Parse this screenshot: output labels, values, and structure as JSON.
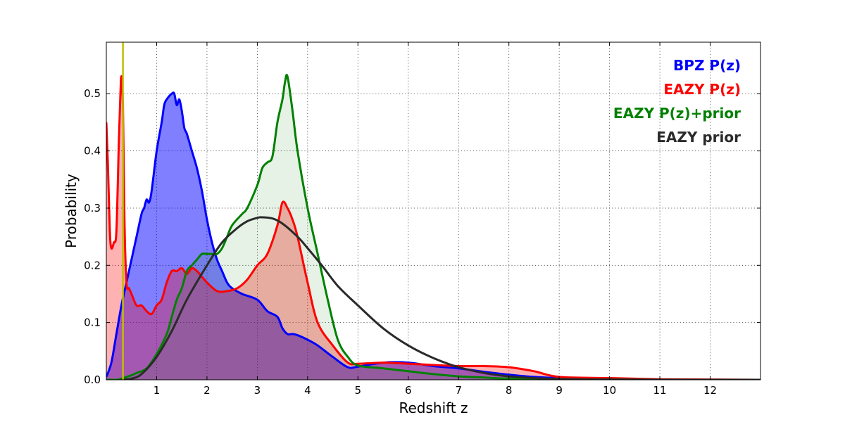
{
  "chart_data": {
    "type": "area",
    "title": "",
    "xlabel": "Redshift z",
    "ylabel": "Probability",
    "xlim": [
      0,
      13
    ],
    "ylim": [
      0,
      0.59
    ],
    "x_ticks": [
      1,
      2,
      3,
      4,
      5,
      6,
      7,
      8,
      9,
      10,
      11,
      12
    ],
    "y_ticks": [
      0.0,
      0.1,
      0.2,
      0.3,
      0.4,
      0.5
    ],
    "x_tick_labels": [
      "1",
      "2",
      "3",
      "4",
      "5",
      "6",
      "7",
      "8",
      "9",
      "10",
      "11",
      "12"
    ],
    "y_tick_labels": [
      "0.0",
      "0.1",
      "0.2",
      "0.3",
      "0.4",
      "0.5"
    ],
    "grid": true,
    "legend_position": "top-right",
    "vertical_line": {
      "x": 0.33,
      "color": "#bfbf00"
    },
    "series": [
      {
        "name": "BPZ P(z)",
        "color": "#0000ff",
        "fill": "#0000ff",
        "fill_opacity": 0.5,
        "x": [
          0,
          0.1,
          0.2,
          0.3,
          0.4,
          0.5,
          0.6,
          0.7,
          0.75,
          0.8,
          0.85,
          0.9,
          1.0,
          1.1,
          1.15,
          1.2,
          1.3,
          1.35,
          1.4,
          1.45,
          1.5,
          1.55,
          1.6,
          1.7,
          1.8,
          1.9,
          2.0,
          2.1,
          2.2,
          2.3,
          2.4,
          2.5,
          2.7,
          3.0,
          3.2,
          3.4,
          3.5,
          3.6,
          3.7,
          3.8,
          4.0,
          4.2,
          4.5,
          4.8,
          5.0,
          5.5,
          6.0,
          6.5,
          7.0,
          7.5,
          8.0,
          8.5,
          9.0,
          10.0,
          11.0,
          12.0,
          13.0
        ],
        "values": [
          0.005,
          0.03,
          0.08,
          0.13,
          0.17,
          0.21,
          0.25,
          0.29,
          0.3,
          0.315,
          0.31,
          0.33,
          0.4,
          0.45,
          0.48,
          0.49,
          0.5,
          0.5,
          0.48,
          0.49,
          0.47,
          0.44,
          0.43,
          0.4,
          0.37,
          0.33,
          0.28,
          0.24,
          0.21,
          0.19,
          0.17,
          0.16,
          0.15,
          0.14,
          0.12,
          0.11,
          0.09,
          0.08,
          0.08,
          0.078,
          0.07,
          0.06,
          0.04,
          0.022,
          0.023,
          0.03,
          0.03,
          0.024,
          0.02,
          0.014,
          0.009,
          0.005,
          0.003,
          0.001,
          0.0005,
          0,
          0
        ]
      },
      {
        "name": "EAZY P(z)",
        "color": "#ff0000",
        "fill": "#ff0000",
        "fill_opacity": 0.3,
        "x": [
          0,
          0.03,
          0.07,
          0.1,
          0.15,
          0.2,
          0.25,
          0.28,
          0.3,
          0.33,
          0.36,
          0.4,
          0.45,
          0.5,
          0.6,
          0.7,
          0.8,
          0.9,
          1.0,
          1.1,
          1.2,
          1.3,
          1.4,
          1.5,
          1.6,
          1.7,
          1.8,
          1.9,
          2.0,
          2.2,
          2.4,
          2.6,
          2.8,
          3.0,
          3.2,
          3.4,
          3.5,
          3.6,
          3.7,
          3.8,
          4.0,
          4.2,
          4.5,
          4.8,
          5.0,
          5.5,
          6.0,
          6.5,
          7.0,
          7.5,
          8.0,
          8.5,
          9.0,
          10.0,
          11.0,
          12.0,
          13.0
        ],
        "values": [
          0.45,
          0.38,
          0.26,
          0.23,
          0.24,
          0.26,
          0.42,
          0.5,
          0.53,
          0.48,
          0.28,
          0.17,
          0.16,
          0.15,
          0.13,
          0.13,
          0.12,
          0.115,
          0.13,
          0.14,
          0.17,
          0.19,
          0.19,
          0.195,
          0.185,
          0.195,
          0.19,
          0.18,
          0.17,
          0.155,
          0.155,
          0.16,
          0.175,
          0.2,
          0.22,
          0.27,
          0.31,
          0.3,
          0.28,
          0.25,
          0.17,
          0.1,
          0.06,
          0.03,
          0.028,
          0.03,
          0.028,
          0.026,
          0.024,
          0.024,
          0.022,
          0.015,
          0.005,
          0.003,
          0.001,
          0.0005,
          0
        ]
      },
      {
        "name": "EAZY P(z)+prior",
        "color": "#008000",
        "fill": "#008000",
        "fill_opacity": 0.1,
        "x": [
          0,
          0.2,
          0.3,
          0.4,
          0.5,
          0.6,
          0.8,
          1.0,
          1.2,
          1.3,
          1.4,
          1.5,
          1.6,
          1.7,
          1.8,
          1.9,
          2.0,
          2.1,
          2.2,
          2.3,
          2.4,
          2.5,
          2.7,
          2.8,
          3.0,
          3.1,
          3.2,
          3.3,
          3.4,
          3.5,
          3.55,
          3.6,
          3.7,
          3.8,
          4.0,
          4.2,
          4.4,
          4.6,
          4.8,
          5.0,
          5.5,
          6.0,
          6.5,
          7.0,
          7.5,
          8.0,
          9.0,
          10.0,
          11.0,
          12.0,
          13.0
        ],
        "values": [
          0,
          0,
          0.002,
          0.005,
          0.008,
          0.012,
          0.02,
          0.045,
          0.08,
          0.11,
          0.14,
          0.16,
          0.19,
          0.2,
          0.21,
          0.22,
          0.22,
          0.22,
          0.22,
          0.23,
          0.25,
          0.27,
          0.29,
          0.3,
          0.34,
          0.37,
          0.38,
          0.39,
          0.45,
          0.49,
          0.52,
          0.53,
          0.47,
          0.4,
          0.3,
          0.22,
          0.14,
          0.07,
          0.04,
          0.025,
          0.02,
          0.015,
          0.01,
          0.006,
          0.004,
          0.002,
          0.001,
          0.0005,
          0,
          0,
          0
        ]
      },
      {
        "name": "EAZY prior",
        "color": "#2a2a2a",
        "fill": "none",
        "fill_opacity": 0,
        "x": [
          0.3,
          0.5,
          0.7,
          1.0,
          1.3,
          1.6,
          2.0,
          2.3,
          2.6,
          2.8,
          3.0,
          3.1,
          3.3,
          3.5,
          3.8,
          4.0,
          4.3,
          4.6,
          5.0,
          5.5,
          6.0,
          6.5,
          7.0,
          7.5,
          8.0,
          8.5,
          9.0,
          9.5,
          10.0,
          11.0,
          12.0,
          13.0
        ],
        "values": [
          0,
          0.002,
          0.01,
          0.04,
          0.085,
          0.14,
          0.2,
          0.24,
          0.265,
          0.277,
          0.283,
          0.284,
          0.282,
          0.273,
          0.25,
          0.23,
          0.198,
          0.164,
          0.13,
          0.09,
          0.06,
          0.038,
          0.022,
          0.012,
          0.006,
          0.003,
          0.0015,
          0.0008,
          0.0004,
          0.0001,
          0,
          0
        ]
      }
    ]
  }
}
